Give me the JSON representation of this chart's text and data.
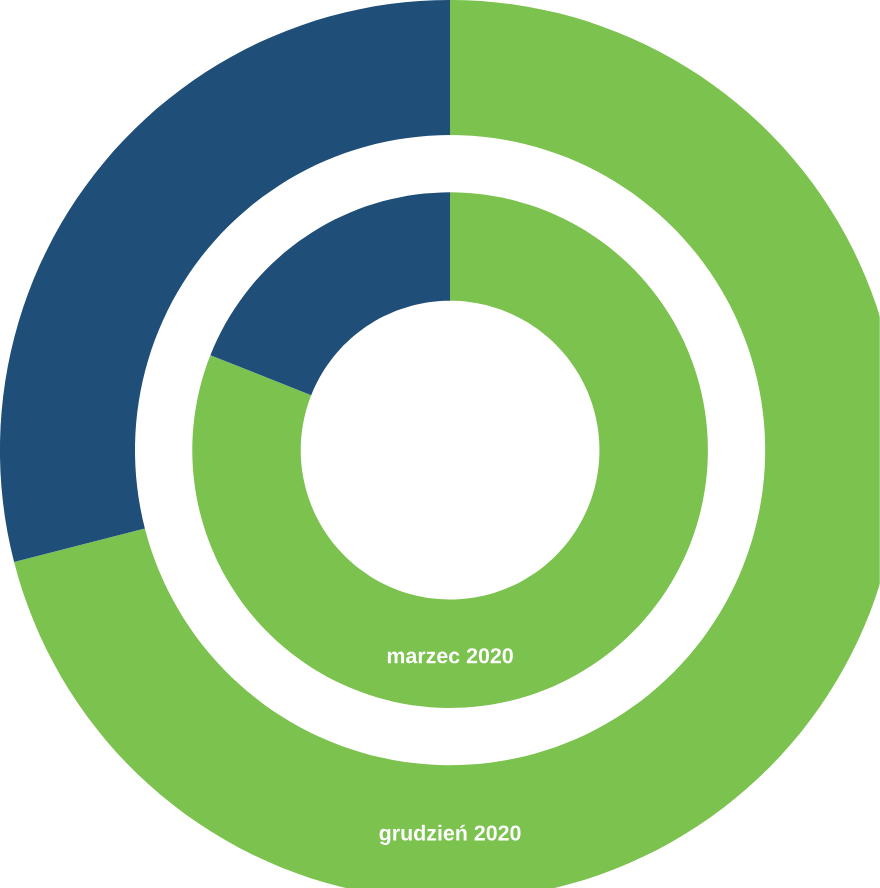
{
  "chart_data": {
    "type": "donut",
    "categories": [
      null,
      null
    ],
    "colors": [
      "#7bc24f",
      "#1f4e79"
    ],
    "series": [
      {
        "name": "marzec 2020",
        "values": [
          81,
          19
        ]
      },
      {
        "name": "grudzień 2020",
        "values": [
          71,
          29
        ]
      }
    ]
  }
}
